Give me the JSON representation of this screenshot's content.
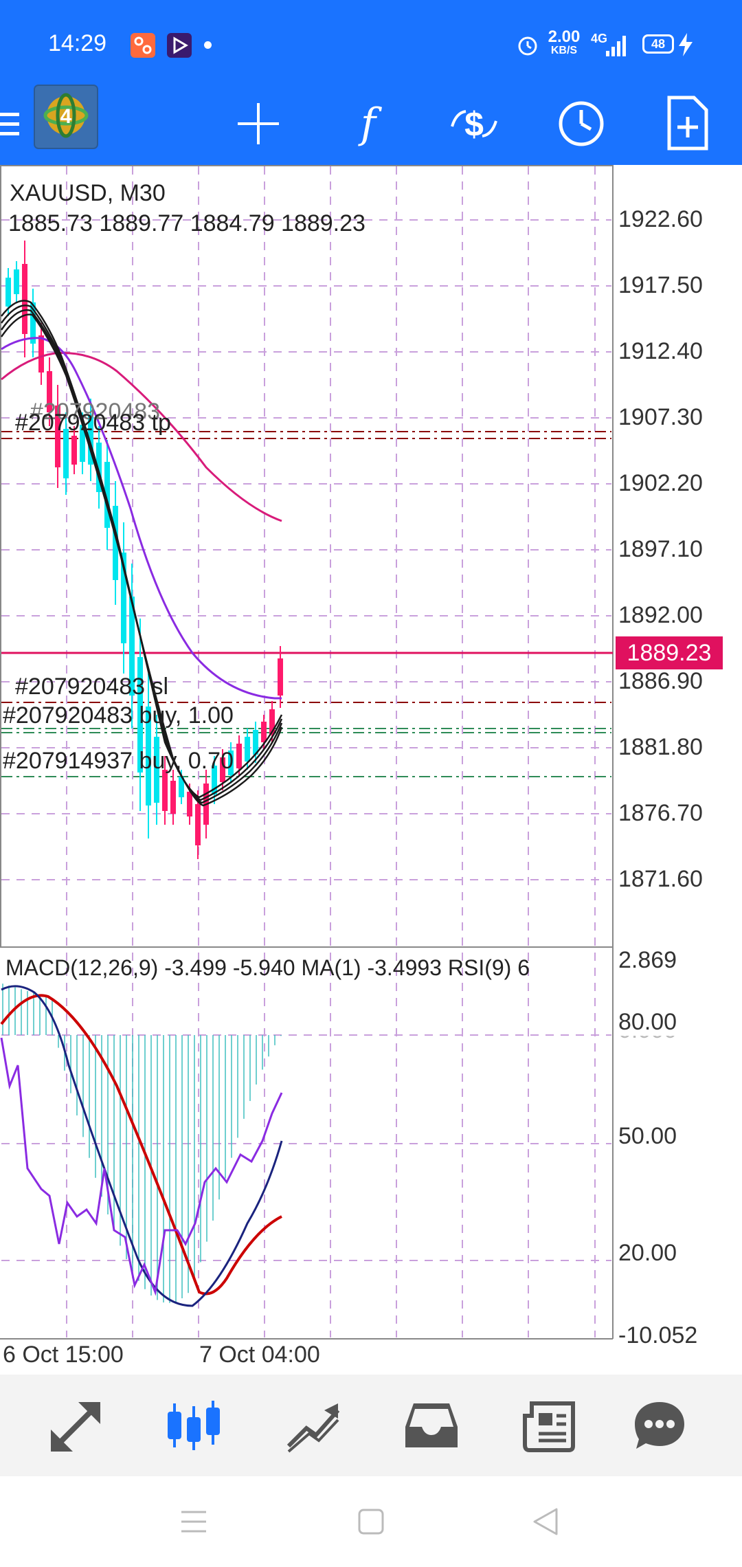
{
  "status_bar": {
    "time": "14:29",
    "net_speed_value": "2.00",
    "net_speed_unit": "KB/S",
    "network": "4G",
    "battery": "48",
    "icons": [
      "app-notification-icon",
      "video-app-icon",
      "dot-icon",
      "alarm-icon",
      "signal-icon",
      "battery-icon",
      "charging-icon"
    ]
  },
  "toolbar": {
    "icons": [
      "menu-icon",
      "mt4-logo-icon",
      "crosshair-icon",
      "indicators-icon",
      "trade-icon",
      "timeframe-icon",
      "new-order-icon"
    ]
  },
  "main_chart": {
    "symbol_label": "XAUUSD, M30",
    "ohlc_label": "1885.73 1889.77 1884.79 1889.23",
    "price_ticks": [
      "1922.60",
      "1917.50",
      "1912.40",
      "1907.30",
      "1902.20",
      "1897.10",
      "1892.00",
      "1886.90",
      "1881.80",
      "1876.70",
      "1871.60"
    ],
    "current_price": "1889.23",
    "order_labels": {
      "tp": "#207920483 tp",
      "tp_overlap": "#207920483",
      "sl": "#207920483 sl",
      "buy1": "#207920483 buy, 1.00",
      "buy2": "#207914937 buy, 0.70"
    },
    "colors": {
      "bull": "#00e5ee",
      "bear": "#ff1a6b",
      "ma_fast": "#1a1a1a",
      "ma_purple": "#8a2be2",
      "ma_magenta": "#d81b7a",
      "current_price": "#e0115f",
      "tp_sl_line": "#8b0000",
      "buy_line": "#2e8b57"
    }
  },
  "indicator": {
    "label": "MACD(12,26,9) -3.499 -5.940 MA(1) -3.4993 RSI(9) 6",
    "ticks": [
      "2.869",
      "80.00",
      "50.00",
      "20.00",
      "-10.052"
    ],
    "hidden_tick": "0.000"
  },
  "time_axis": {
    "labels": [
      "6 Oct 15:00",
      "7 Oct 04:00"
    ]
  },
  "bottom_nav": {
    "items": [
      "quotes-tab-icon",
      "chart-tab-icon",
      "trade-tab-icon",
      "history-tab-icon",
      "news-tab-icon",
      "messages-tab-icon"
    ],
    "active": "chart-tab-icon"
  },
  "system_nav": [
    "recent-apps-icon",
    "home-icon",
    "back-icon"
  ]
}
